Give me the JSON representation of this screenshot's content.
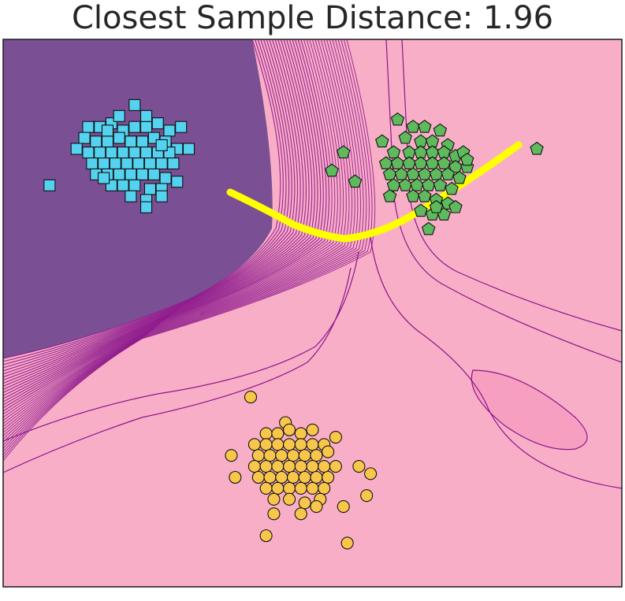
{
  "chart_data": {
    "type": "scatter",
    "title": "Closest Sample Distance: 1.96",
    "xlabel": "",
    "ylabel": "",
    "xlim": [
      -4,
      4
    ],
    "ylim": [
      -4,
      3.5
    ],
    "grid": false,
    "legend": "none",
    "colors": {
      "background_high": "#7b4f93",
      "background_low": "#f9aec8",
      "contour_line": "#8b168b",
      "path": "#ffff00",
      "squares": "#55d2f0",
      "pentagons": "#5fb95d",
      "circles": "#f8c64a"
    },
    "series": [
      {
        "marker": "square",
        "color": "#55d2f0",
        "points": [
          [
            -2.3,
            2.6
          ],
          [
            -2.9,
            2.3
          ],
          [
            -2.75,
            2.3
          ],
          [
            -2.6,
            2.35
          ],
          [
            -2.45,
            2.25
          ],
          [
            -2.3,
            2.3
          ],
          [
            -2.15,
            2.3
          ],
          [
            -2.0,
            2.35
          ],
          [
            -1.85,
            2.25
          ],
          [
            -1.7,
            2.3
          ],
          [
            -2.95,
            2.15
          ],
          [
            -2.8,
            2.1
          ],
          [
            -2.65,
            2.1
          ],
          [
            -2.5,
            2.15
          ],
          [
            -2.35,
            2.1
          ],
          [
            -2.2,
            2.1
          ],
          [
            -2.05,
            2.15
          ],
          [
            -1.9,
            2.1
          ],
          [
            -1.75,
            2.0
          ],
          [
            -3.05,
            2.0
          ],
          [
            -2.9,
            1.95
          ],
          [
            -2.75,
            1.95
          ],
          [
            -2.6,
            1.95
          ],
          [
            -2.45,
            1.95
          ],
          [
            -2.3,
            1.95
          ],
          [
            -2.15,
            1.95
          ],
          [
            -2.0,
            1.95
          ],
          [
            -1.85,
            1.95
          ],
          [
            -1.6,
            2.0
          ],
          [
            -2.85,
            1.8
          ],
          [
            -2.7,
            1.8
          ],
          [
            -2.55,
            1.8
          ],
          [
            -2.4,
            1.8
          ],
          [
            -2.25,
            1.8
          ],
          [
            -2.1,
            1.8
          ],
          [
            -1.95,
            1.8
          ],
          [
            -1.8,
            1.8
          ],
          [
            -2.8,
            1.65
          ],
          [
            -2.65,
            1.65
          ],
          [
            -2.5,
            1.65
          ],
          [
            -2.35,
            1.65
          ],
          [
            -2.2,
            1.65
          ],
          [
            -2.05,
            1.65
          ],
          [
            -1.9,
            1.6
          ],
          [
            -1.75,
            1.55
          ],
          [
            -2.6,
            1.5
          ],
          [
            -2.45,
            1.5
          ],
          [
            -2.3,
            1.5
          ],
          [
            -2.1,
            1.45
          ],
          [
            -1.95,
            1.45
          ],
          [
            -2.35,
            1.35
          ],
          [
            -2.15,
            1.3
          ],
          [
            -1.95,
            1.35
          ],
          [
            -2.5,
            2.45
          ],
          [
            -2.15,
            2.45
          ],
          [
            -2.65,
            2.25
          ],
          [
            -1.95,
            2.05
          ],
          [
            -2.15,
            1.2
          ],
          [
            -3.4,
            1.5
          ],
          [
            -2.7,
            1.6
          ]
        ]
      },
      {
        "marker": "pentagon",
        "color": "#5fb95d",
        "points": [
          [
            1.1,
            2.4
          ],
          [
            1.3,
            2.3
          ],
          [
            1.45,
            2.3
          ],
          [
            1.65,
            2.25
          ],
          [
            0.9,
            2.1
          ],
          [
            1.2,
            2.15
          ],
          [
            1.4,
            2.1
          ],
          [
            1.55,
            2.1
          ],
          [
            1.75,
            2.05
          ],
          [
            1.05,
            1.95
          ],
          [
            1.25,
            1.95
          ],
          [
            1.4,
            1.95
          ],
          [
            1.55,
            1.95
          ],
          [
            1.7,
            1.95
          ],
          [
            1.85,
            1.9
          ],
          [
            0.95,
            1.8
          ],
          [
            1.1,
            1.8
          ],
          [
            1.25,
            1.8
          ],
          [
            1.4,
            1.8
          ],
          [
            1.55,
            1.8
          ],
          [
            1.7,
            1.8
          ],
          [
            1.85,
            1.75
          ],
          [
            2.0,
            1.75
          ],
          [
            1.0,
            1.65
          ],
          [
            1.15,
            1.65
          ],
          [
            1.3,
            1.65
          ],
          [
            1.45,
            1.65
          ],
          [
            1.6,
            1.65
          ],
          [
            1.75,
            1.65
          ],
          [
            1.9,
            1.6
          ],
          [
            1.05,
            1.5
          ],
          [
            1.2,
            1.5
          ],
          [
            1.35,
            1.5
          ],
          [
            1.5,
            1.5
          ],
          [
            1.65,
            1.5
          ],
          [
            1.8,
            1.45
          ],
          [
            1.3,
            1.35
          ],
          [
            1.45,
            1.35
          ],
          [
            1.6,
            1.3
          ],
          [
            1.75,
            1.25
          ],
          [
            1.4,
            1.15
          ],
          [
            1.55,
            1.1
          ],
          [
            1.7,
            1.1
          ],
          [
            0.4,
            1.95
          ],
          [
            0.25,
            1.7
          ],
          [
            1.0,
            1.35
          ],
          [
            1.5,
            0.9
          ],
          [
            1.85,
            1.2
          ],
          [
            2.9,
            2.0
          ],
          [
            1.95,
            1.95
          ],
          [
            1.6,
            1.2
          ],
          [
            2.0,
            1.85
          ],
          [
            0.55,
            1.55
          ]
        ]
      },
      {
        "marker": "circle",
        "color": "#f8c64a",
        "points": [
          [
            -0.8,
            -1.4
          ],
          [
            -0.35,
            -1.75
          ],
          [
            -0.6,
            -1.9
          ],
          [
            -0.45,
            -1.9
          ],
          [
            -0.3,
            -1.85
          ],
          [
            -0.15,
            -1.9
          ],
          [
            0.0,
            -1.85
          ],
          [
            -0.75,
            -2.05
          ],
          [
            -0.6,
            -2.05
          ],
          [
            -0.45,
            -2.05
          ],
          [
            -0.3,
            -2.05
          ],
          [
            -0.15,
            -2.05
          ],
          [
            0.0,
            -2.05
          ],
          [
            0.15,
            -2.05
          ],
          [
            -0.7,
            -2.2
          ],
          [
            -0.55,
            -2.2
          ],
          [
            -0.4,
            -2.2
          ],
          [
            -0.25,
            -2.2
          ],
          [
            -0.1,
            -2.2
          ],
          [
            0.05,
            -2.2
          ],
          [
            0.2,
            -2.15
          ],
          [
            -0.75,
            -2.35
          ],
          [
            -0.6,
            -2.35
          ],
          [
            -0.45,
            -2.35
          ],
          [
            -0.3,
            -2.35
          ],
          [
            -0.15,
            -2.35
          ],
          [
            0.0,
            -2.35
          ],
          [
            0.15,
            -2.35
          ],
          [
            0.3,
            -2.35
          ],
          [
            -0.7,
            -2.5
          ],
          [
            -0.55,
            -2.5
          ],
          [
            -0.4,
            -2.5
          ],
          [
            -0.25,
            -2.5
          ],
          [
            -0.1,
            -2.5
          ],
          [
            0.05,
            -2.5
          ],
          [
            0.2,
            -2.5
          ],
          [
            -0.6,
            -2.65
          ],
          [
            -0.45,
            -2.65
          ],
          [
            -0.3,
            -2.65
          ],
          [
            -0.15,
            -2.65
          ],
          [
            0.0,
            -2.65
          ],
          [
            0.15,
            -2.65
          ],
          [
            -0.5,
            -2.8
          ],
          [
            -0.3,
            -2.8
          ],
          [
            -0.1,
            -2.85
          ],
          [
            0.1,
            -2.8
          ],
          [
            -1.0,
            -2.5
          ],
          [
            0.6,
            -2.35
          ],
          [
            0.7,
            -2.75
          ],
          [
            0.4,
            -2.9
          ],
          [
            -0.5,
            -3.0
          ],
          [
            -0.15,
            -3.0
          ],
          [
            0.05,
            -2.9
          ],
          [
            -0.6,
            -3.3
          ],
          [
            0.45,
            -3.4
          ],
          [
            -1.05,
            -2.2
          ],
          [
            0.75,
            -2.45
          ],
          [
            0.3,
            -1.95
          ]
        ]
      }
    ]
  }
}
